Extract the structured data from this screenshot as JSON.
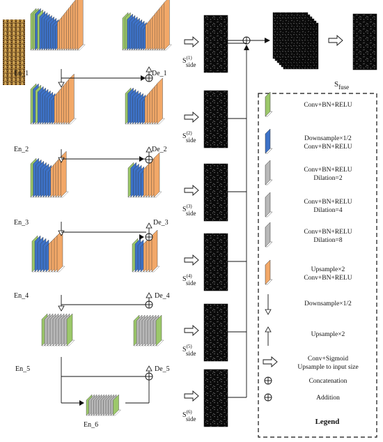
{
  "encoders": [
    "En_1",
    "En_2",
    "En_3",
    "En_4",
    "En_5",
    "En_6"
  ],
  "decoders": [
    "De_1",
    "De_2",
    "De_3",
    "De_4",
    "De_5"
  ],
  "side_outputs": [
    {
      "sup": "(1)",
      "sub": "side"
    },
    {
      "sup": "(2)",
      "sub": "side"
    },
    {
      "sup": "(3)",
      "sub": "side"
    },
    {
      "sup": "(4)",
      "sub": "side"
    },
    {
      "sup": "(5)",
      "sub": "side"
    },
    {
      "sup": "(6)",
      "sub": "side"
    }
  ],
  "fuse": {
    "main": "S",
    "sub": "fuse"
  },
  "legend": {
    "title": "Legend",
    "items": [
      {
        "line1": "Conv+BN+RELU",
        "line2": ""
      },
      {
        "line1": "Downsample×1/2",
        "line2": "Conv+BN+RELU"
      },
      {
        "line1": "Conv+BN+RELU",
        "line2": "Dilation=2"
      },
      {
        "line1": "Conv+BN+RELU",
        "line2": "Dilation=4"
      },
      {
        "line1": "Conv+BN+RELU",
        "line2": "Dilation=8"
      },
      {
        "line1": "Upsample×2",
        "line2": "Conv+BN+RELU"
      },
      {
        "line1": "Downsample×1/2",
        "line2": ""
      },
      {
        "line1": "Upsample×2",
        "line2": ""
      },
      {
        "line1": "Conv+Sigmoid",
        "line2": "Upsample to input size"
      },
      {
        "line1": "Concatenation",
        "line2": ""
      },
      {
        "line1": "Addition",
        "line2": ""
      }
    ]
  },
  "colors": {
    "green": "#9cc86a",
    "blue": "#3d72c8",
    "orange": "#f2a868",
    "gray": "#b8b8b8",
    "dark": "#111111"
  }
}
